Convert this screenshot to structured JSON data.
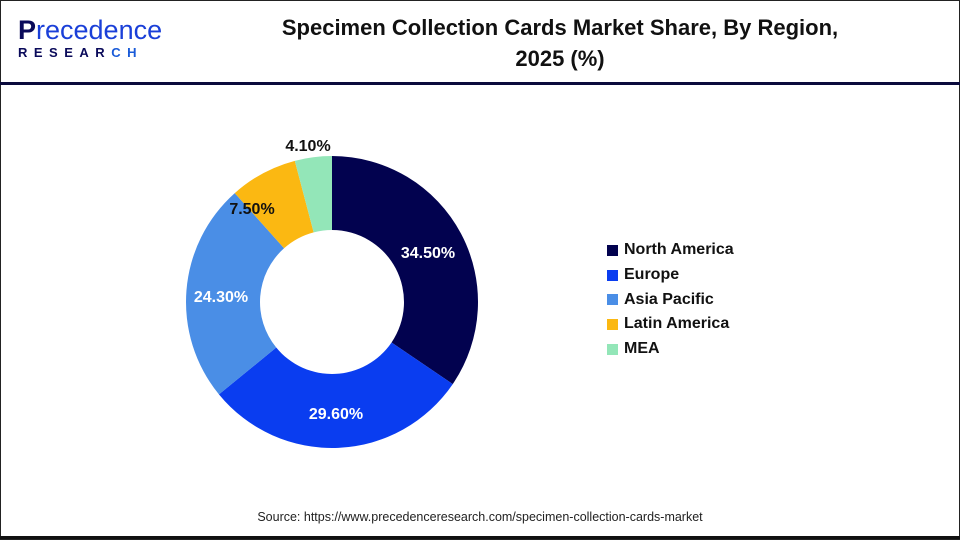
{
  "header": {
    "logo_top_first": "P",
    "logo_top_rest": "recedence",
    "logo_bottom_main": "RESEAR",
    "logo_bottom_accent": "CH",
    "title_line1": "Specimen Collection Cards Market Share, By Region,",
    "title_line2": "2025 (%)"
  },
  "chart_data": {
    "type": "pie",
    "subtype": "donut",
    "title": "Specimen Collection Cards Market Share, By Region, 2025 (%)",
    "categories": [
      "North America",
      "Europe",
      "Asia Pacific",
      "Latin America",
      "MEA"
    ],
    "values": [
      34.5,
      29.6,
      24.3,
      7.5,
      4.1
    ],
    "labels": [
      "34.50%",
      "29.60%",
      "24.30%",
      "7.50%",
      "4.10%"
    ],
    "colors": [
      "#02024f",
      "#0a3df0",
      "#4a8ee6",
      "#fbb812",
      "#93e6b8"
    ],
    "label_colors": [
      "#ffffff",
      "#ffffff",
      "#ffffff",
      "#111111",
      "#111111"
    ],
    "legend_position": "right",
    "unit": "%"
  },
  "legend": {
    "items": [
      {
        "label": "North America",
        "color": "#02024f"
      },
      {
        "label": "Europe",
        "color": "#0a3df0"
      },
      {
        "label": "Asia Pacific",
        "color": "#4a8ee6"
      },
      {
        "label": "Latin America",
        "color": "#fbb812"
      },
      {
        "label": "MEA",
        "color": "#93e6b8"
      }
    ]
  },
  "footer": {
    "source": "Source: https://www.precedenceresearch.com/specimen-collection-cards-market"
  }
}
